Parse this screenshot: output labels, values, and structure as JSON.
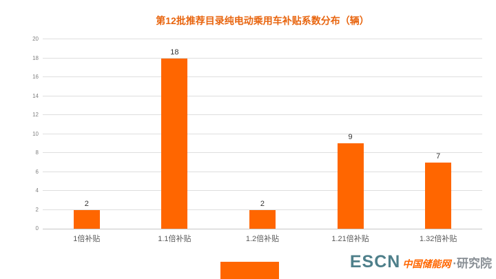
{
  "chart_data": {
    "type": "bar",
    "title": "第12批推荐目录纯电动乘用车补贴系数分布（辆）",
    "categories": [
      "1倍补贴",
      "1.1倍补贴",
      "1.2倍补贴",
      "1.21倍补贴",
      "1.32倍补贴"
    ],
    "values": [
      2,
      18,
      2,
      9,
      7
    ],
    "xlabel": "",
    "ylabel": "",
    "ylim": [
      0,
      20
    ],
    "ytick_step": 2,
    "grid": "horizontal",
    "legend": "none",
    "bar_color": "#ff6600",
    "title_color": "#e8650f"
  },
  "watermark": {
    "escn": "ESCN",
    "cn": "中国储能网",
    "suffix": "·研究院"
  },
  "colors": {
    "background": "#ffffff",
    "gridline": "#dedede",
    "axis": "#c6c6c6",
    "value_label": "#333333",
    "category_label": "#595959",
    "ytick_label": "#808080"
  }
}
